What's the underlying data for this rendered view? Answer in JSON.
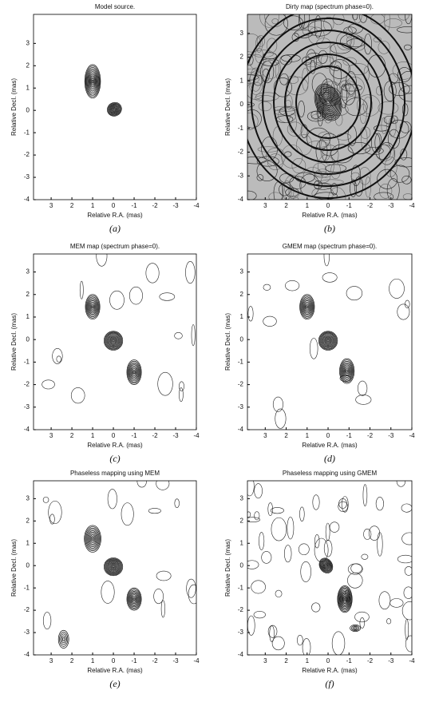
{
  "chart_data": [
    {
      "type": "contour",
      "title": "Model source.",
      "xlabel": "Relative R.A. (mas)",
      "ylabel": "Relative Decl. (mas)",
      "caption": "(a)",
      "xlim": [
        3.85,
        -4
      ],
      "ylim": [
        -4,
        4.3
      ],
      "xticks": [
        3,
        2,
        1,
        0,
        -1,
        -2,
        -3,
        -4
      ],
      "yticks": [
        -4,
        -3,
        -2,
        -1,
        0,
        1,
        2,
        3
      ]
    },
    {
      "type": "contour",
      "title": "Dirty map (spectrum phase=0).",
      "xlabel": "Relative R.A. (mas)",
      "ylabel": "Relative Decl. (mas)",
      "caption": "(b)",
      "xlim": [
        3.85,
        -4
      ],
      "ylim": [
        -4,
        3.8
      ],
      "xticks": [
        3,
        2,
        1,
        0,
        -1,
        -2,
        -3,
        -4
      ],
      "yticks": [
        -4,
        -3,
        -2,
        -1,
        0,
        1,
        2,
        3
      ]
    },
    {
      "type": "contour",
      "title": "MEM map (spectrum phase=0).",
      "xlabel": "Relative R.A. (mas)",
      "ylabel": "Relative Decl. (mas)",
      "caption": "(c)",
      "xlim": [
        3.85,
        -4
      ],
      "ylim": [
        -4,
        3.8
      ],
      "xticks": [
        3,
        2,
        1,
        0,
        -1,
        -2,
        -3,
        -4
      ],
      "yticks": [
        -4,
        -3,
        -2,
        -1,
        0,
        1,
        2,
        3
      ]
    },
    {
      "type": "contour",
      "title": "GMEM map (spectrum phase=0).",
      "xlabel": "Relative R.A. (mas)",
      "ylabel": "Relative Decl. (mas)",
      "caption": "(d)",
      "xlim": [
        3.85,
        -4
      ],
      "ylim": [
        -4,
        3.8
      ],
      "xticks": [
        3,
        2,
        1,
        0,
        -1,
        -2,
        -3,
        -4
      ],
      "yticks": [
        -4,
        -3,
        -2,
        -1,
        0,
        1,
        2,
        3
      ]
    },
    {
      "type": "contour",
      "title": "Phaseless mapping using MEM",
      "xlabel": "Relative R.A. (mas)",
      "ylabel": "Relative Decl. (mas)",
      "caption": "(e)",
      "xlim": [
        3.85,
        -4
      ],
      "ylim": [
        -4,
        3.8
      ],
      "xticks": [
        3,
        2,
        1,
        0,
        -1,
        -2,
        -3,
        -4
      ],
      "yticks": [
        -4,
        -3,
        -2,
        -1,
        0,
        1,
        2,
        3
      ]
    },
    {
      "type": "contour",
      "title": "Phaseless mapping using GMEM",
      "xlabel": "Relative R.A. (mas)",
      "ylabel": "Relative Decl. (mas)",
      "caption": "(f)",
      "xlim": [
        3.85,
        -4
      ],
      "ylim": [
        -4,
        3.8
      ],
      "xticks": [
        3,
        2,
        1,
        0,
        -1,
        -2,
        -3,
        -4
      ],
      "yticks": [
        -4,
        -3,
        -2,
        -1,
        0,
        1,
        2,
        3
      ]
    }
  ]
}
